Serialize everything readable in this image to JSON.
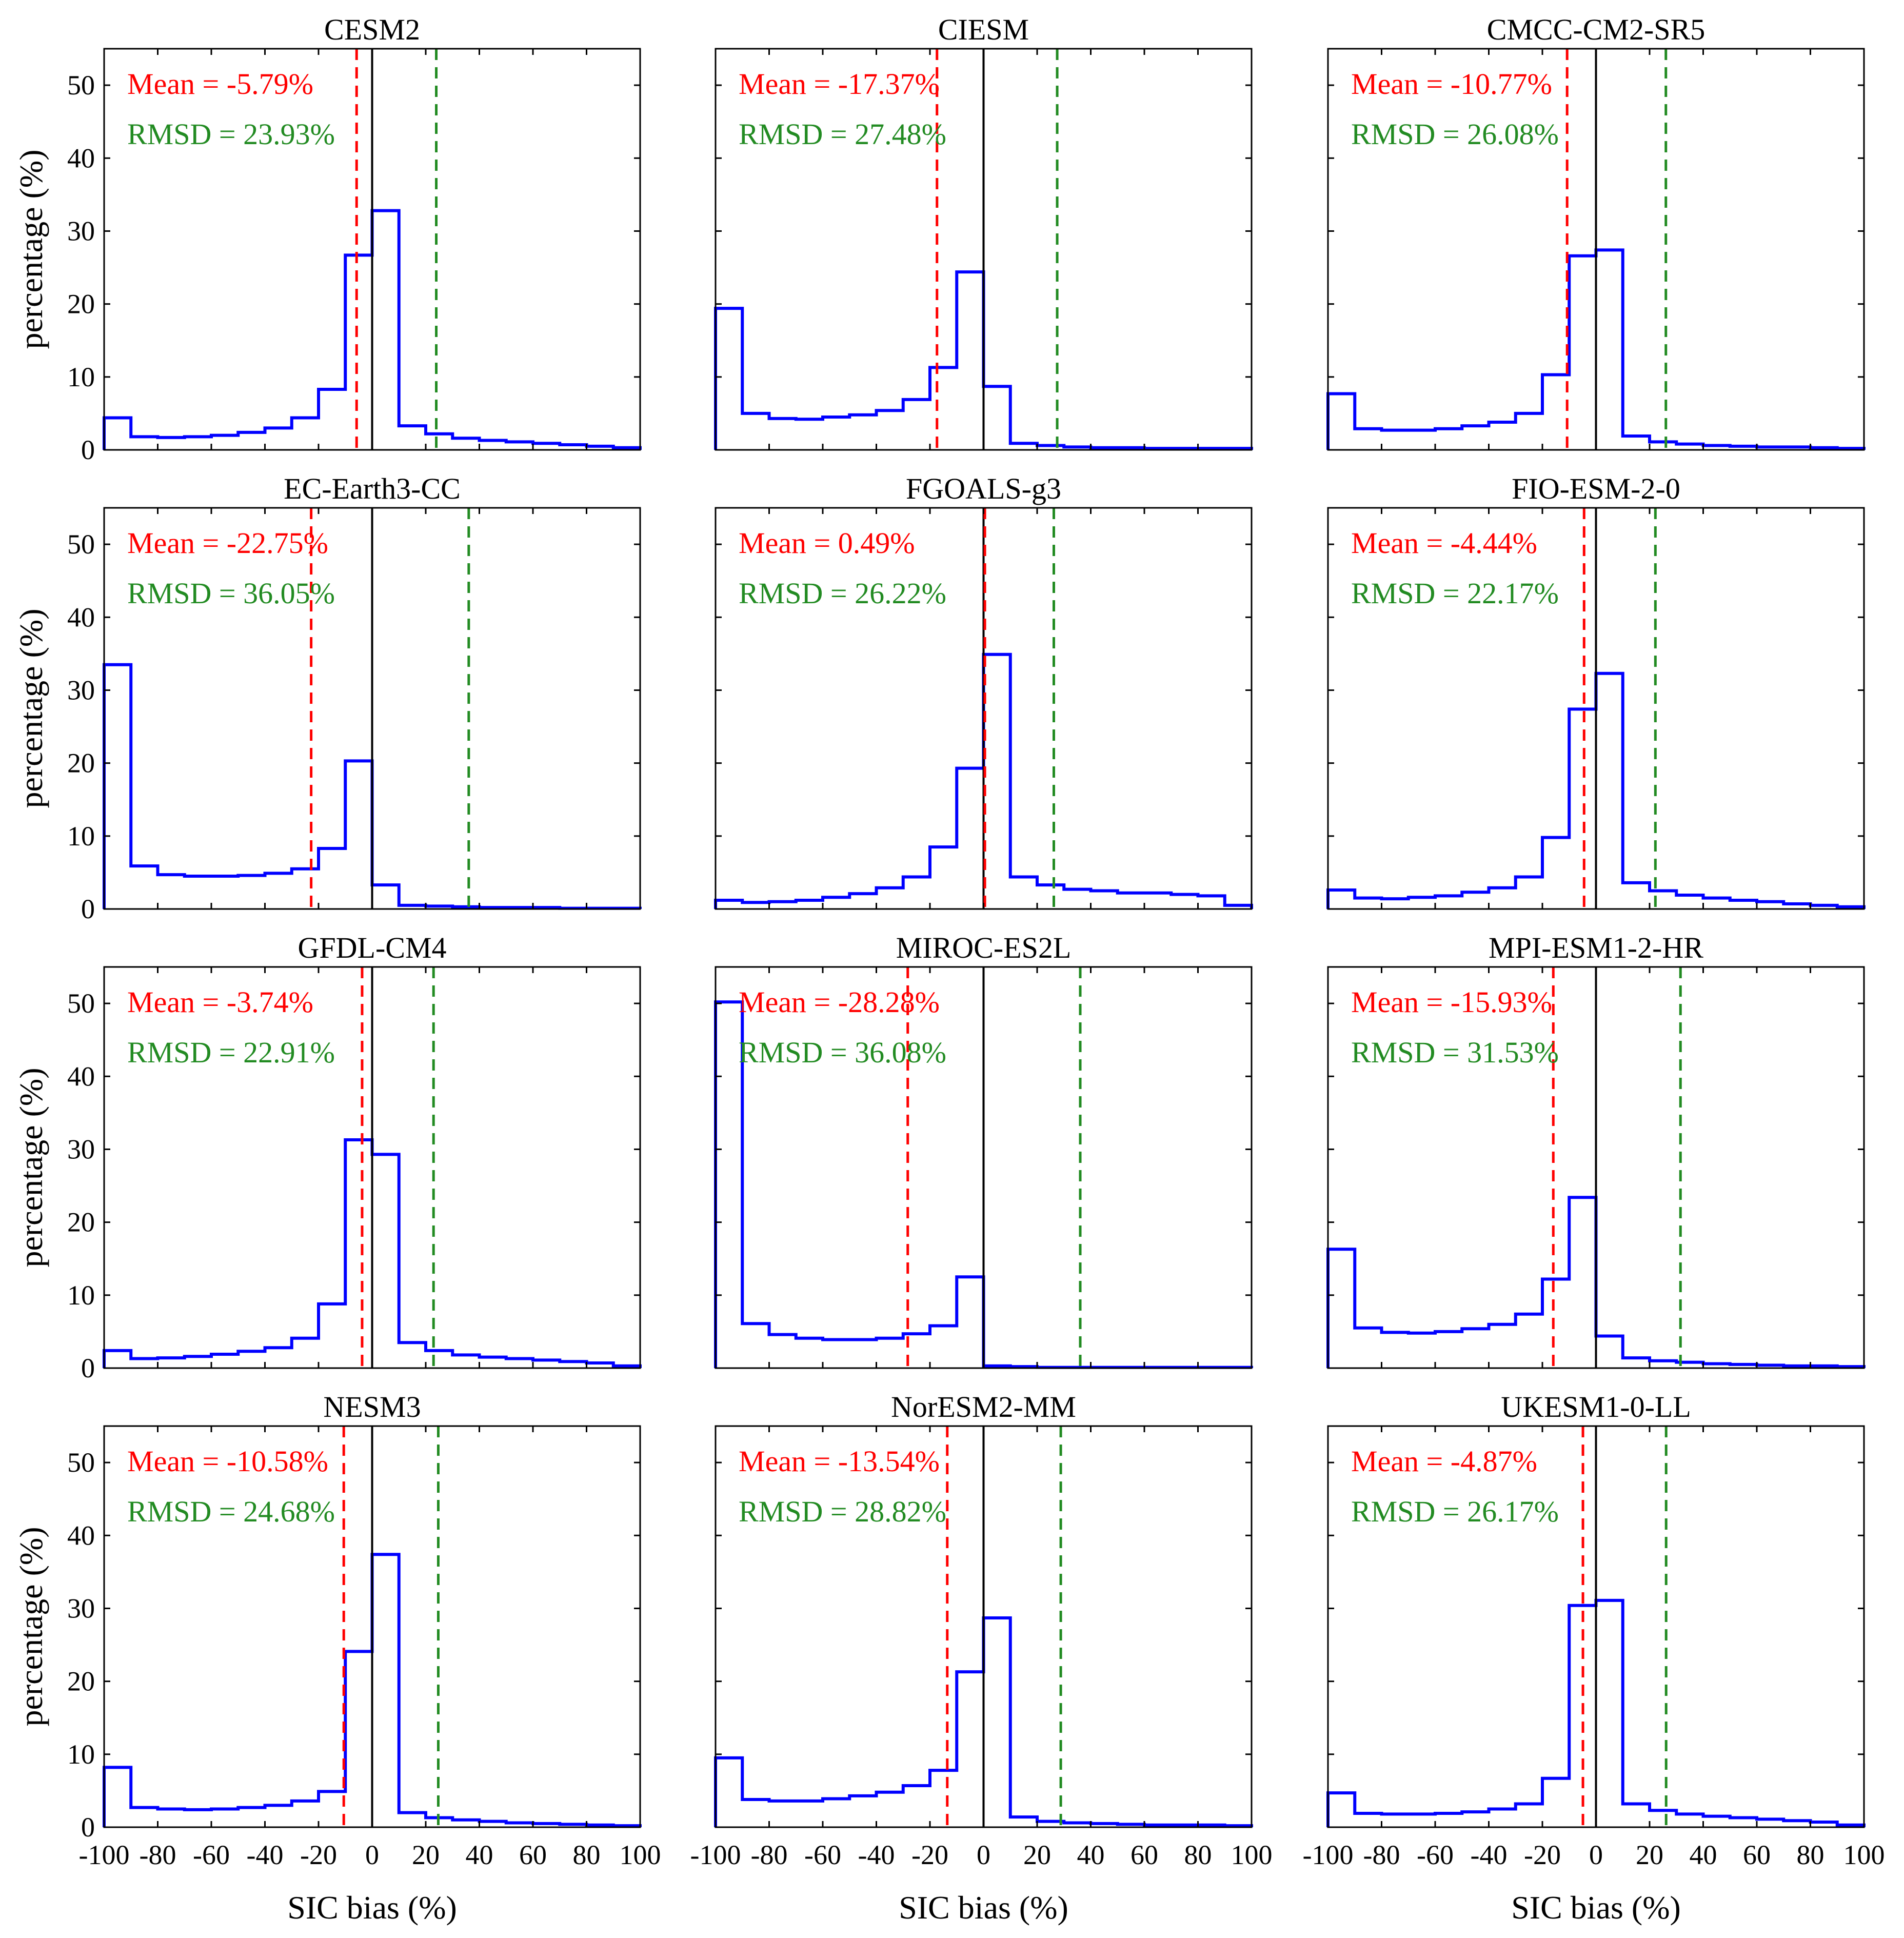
{
  "figure": {
    "ylabel": "percentage (%)",
    "xlabel": "SIC bias (%)",
    "mean_prefix": "Mean = ",
    "rmsd_prefix": "RMSD = ",
    "colors": {
      "hist": "#0000ff",
      "mean": "#ff0000",
      "rmsd": "#228b22",
      "zero": "#000000",
      "axis": "#000000"
    }
  },
  "chart_data": {
    "type": "histogram",
    "xlim": [
      -100,
      100
    ],
    "ylim": [
      0,
      55
    ],
    "xticks": [
      -100,
      -80,
      -60,
      -40,
      -20,
      0,
      20,
      40,
      60,
      80,
      100
    ],
    "yticks": [
      0,
      10,
      20,
      30,
      40,
      50
    ],
    "bin_edges": [
      -100,
      -90,
      -80,
      -70,
      -60,
      -50,
      -40,
      -30,
      -20,
      -10,
      0,
      10,
      20,
      30,
      40,
      50,
      60,
      70,
      80,
      90,
      100
    ],
    "panels": [
      {
        "title": "CESM2",
        "mean": -5.79,
        "mean_label": "-5.79%",
        "rmsd": 23.93,
        "rmsd_label": "23.93%",
        "values": [
          4.4,
          1.8,
          1.7,
          1.8,
          2.0,
          2.4,
          3.0,
          4.4,
          8.3,
          26.7,
          32.8,
          3.3,
          2.2,
          1.6,
          1.3,
          1.1,
          0.9,
          0.7,
          0.5,
          0.3
        ]
      },
      {
        "title": "CIESM",
        "mean": -17.37,
        "mean_label": "-17.37%",
        "rmsd": 27.48,
        "rmsd_label": "27.48%",
        "values": [
          19.4,
          5.0,
          4.3,
          4.2,
          4.5,
          4.8,
          5.4,
          6.9,
          11.3,
          24.4,
          8.7,
          0.9,
          0.6,
          0.4,
          0.3,
          0.3,
          0.2,
          0.2,
          0.2,
          0.2
        ]
      },
      {
        "title": "CMCC-CM2-SR5",
        "mean": -10.77,
        "mean_label": "-10.77%",
        "rmsd": 26.08,
        "rmsd_label": "26.08%",
        "values": [
          7.7,
          2.9,
          2.7,
          2.7,
          2.9,
          3.3,
          3.8,
          5.0,
          10.3,
          26.6,
          27.4,
          1.9,
          1.1,
          0.8,
          0.6,
          0.5,
          0.4,
          0.4,
          0.3,
          0.2
        ]
      },
      {
        "title": "EC-Earth3-CC",
        "mean": -22.75,
        "mean_label": "-22.75%",
        "rmsd": 36.05,
        "rmsd_label": "36.05%",
        "values": [
          33.5,
          5.9,
          4.7,
          4.5,
          4.5,
          4.6,
          4.9,
          5.5,
          8.3,
          20.3,
          3.3,
          0.5,
          0.4,
          0.3,
          0.2,
          0.2,
          0.2,
          0.1,
          0.1,
          0.1
        ]
      },
      {
        "title": "FGOALS-g3",
        "mean": 0.49,
        "mean_label": "0.49%",
        "rmsd": 26.22,
        "rmsd_label": "26.22%",
        "values": [
          1.2,
          0.9,
          1.0,
          1.2,
          1.6,
          2.1,
          2.9,
          4.4,
          8.5,
          19.3,
          34.9,
          4.4,
          3.3,
          2.7,
          2.5,
          2.2,
          2.2,
          2.0,
          1.8,
          0.5
        ]
      },
      {
        "title": "FIO-ESM-2-0",
        "mean": -4.44,
        "mean_label": "-4.44%",
        "rmsd": 22.17,
        "rmsd_label": "22.17%",
        "values": [
          2.6,
          1.5,
          1.4,
          1.6,
          1.8,
          2.3,
          2.9,
          4.4,
          9.8,
          27.4,
          32.3,
          3.6,
          2.5,
          1.9,
          1.5,
          1.2,
          1.0,
          0.7,
          0.5,
          0.3
        ]
      },
      {
        "title": "GFDL-CM4",
        "mean": -3.74,
        "mean_label": "-3.74%",
        "rmsd": 22.91,
        "rmsd_label": "22.91%",
        "values": [
          2.4,
          1.3,
          1.4,
          1.6,
          1.9,
          2.3,
          2.8,
          4.1,
          8.8,
          31.3,
          29.3,
          3.5,
          2.4,
          1.8,
          1.5,
          1.3,
          1.1,
          0.9,
          0.7,
          0.3
        ]
      },
      {
        "title": "MIROC-ES2L",
        "mean": -28.28,
        "mean_label": "-28.28%",
        "rmsd": 36.08,
        "rmsd_label": "36.08%",
        "values": [
          50.2,
          6.1,
          4.6,
          4.1,
          3.9,
          3.9,
          4.1,
          4.7,
          5.8,
          12.5,
          0.3,
          0.2,
          0.1,
          0.1,
          0.1,
          0.1,
          0.1,
          0.1,
          0.1,
          0.1
        ]
      },
      {
        "title": "MPI-ESM1-2-HR",
        "mean": -15.93,
        "mean_label": "-15.93%",
        "rmsd": 31.53,
        "rmsd_label": "31.53%",
        "values": [
          16.3,
          5.5,
          4.9,
          4.8,
          5.0,
          5.4,
          6.0,
          7.4,
          12.2,
          23.4,
          4.4,
          1.4,
          1.0,
          0.8,
          0.6,
          0.5,
          0.4,
          0.3,
          0.3,
          0.2
        ]
      },
      {
        "title": "NESM3",
        "mean": -10.58,
        "mean_label": "-10.58%",
        "rmsd": 24.68,
        "rmsd_label": "24.68%",
        "values": [
          8.2,
          2.7,
          2.5,
          2.4,
          2.5,
          2.7,
          3.0,
          3.6,
          4.9,
          24.1,
          37.4,
          2.0,
          1.3,
          1.0,
          0.8,
          0.6,
          0.5,
          0.4,
          0.3,
          0.2
        ]
      },
      {
        "title": "NorESM2-MM",
        "mean": -13.54,
        "mean_label": "-13.54%",
        "rmsd": 28.82,
        "rmsd_label": "28.82%",
        "values": [
          9.5,
          3.8,
          3.6,
          3.6,
          3.9,
          4.3,
          4.8,
          5.7,
          7.8,
          21.3,
          28.7,
          1.4,
          0.8,
          0.6,
          0.5,
          0.4,
          0.3,
          0.3,
          0.3,
          0.2
        ]
      },
      {
        "title": "UKESM1-0-LL",
        "mean": -4.87,
        "mean_label": "-4.87%",
        "rmsd": 26.17,
        "rmsd_label": "26.17%",
        "values": [
          4.7,
          1.9,
          1.8,
          1.8,
          1.9,
          2.1,
          2.5,
          3.2,
          6.7,
          30.4,
          31.1,
          3.2,
          2.3,
          1.8,
          1.5,
          1.3,
          1.1,
          0.9,
          0.7,
          0.3
        ]
      }
    ]
  }
}
